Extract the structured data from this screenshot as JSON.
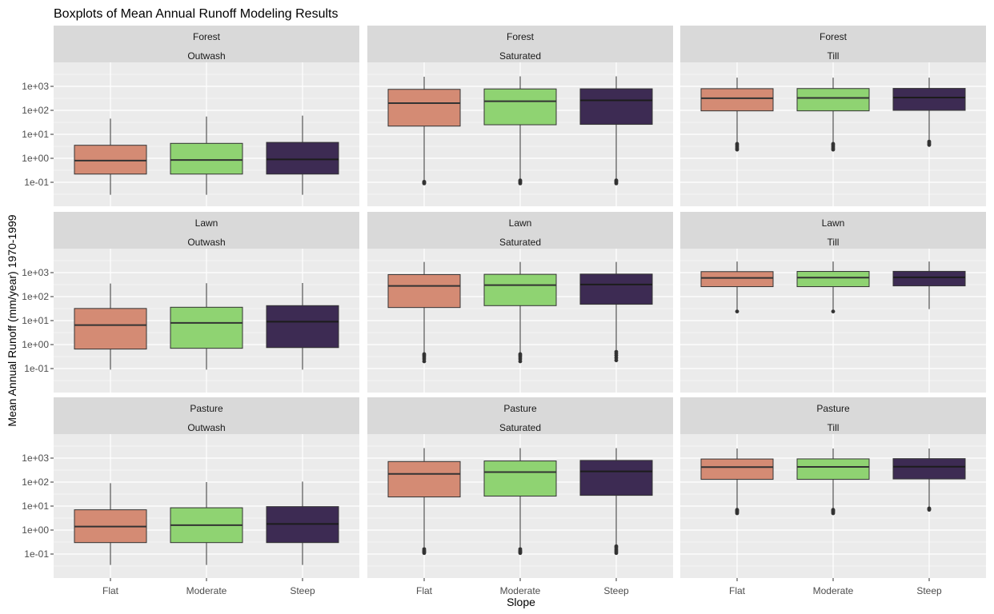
{
  "chart_data": {
    "type": "boxplot",
    "title": "Boxplots of Mean Annual Runoff Modeling Results",
    "xlabel": "Slope",
    "ylabel": "Mean Annual Runoff (mm/year) 1970-1999",
    "y_scale": "log10",
    "ylim": [
      0.01,
      10000
    ],
    "y_ticks": [
      0.1,
      1,
      10,
      100,
      1000
    ],
    "y_tick_labels": [
      "1e-01",
      "1e+00",
      "1e+01",
      "1e+02",
      "1e+03"
    ],
    "categories": [
      "Flat",
      "Moderate",
      "Steep"
    ],
    "fill_colors": {
      "Flat": "#d48b74",
      "Moderate": "#8fd372",
      "Steep": "#3d2b53"
    },
    "facet_rows": [
      "Forest",
      "Lawn",
      "Pasture"
    ],
    "facet_cols": [
      "Outwash",
      "Saturated",
      "Till"
    ],
    "grid": true,
    "legend": "none",
    "panels": [
      {
        "row": "Forest",
        "col": "Outwash",
        "boxes": [
          {
            "category": "Flat",
            "whisker_low": 0.03,
            "q1": 0.22,
            "median": 0.8,
            "q3": 3.5,
            "whisker_high": 45,
            "outliers": []
          },
          {
            "category": "Moderate",
            "whisker_low": 0.03,
            "q1": 0.22,
            "median": 0.85,
            "q3": 4.2,
            "whisker_high": 55,
            "outliers": []
          },
          {
            "category": "Steep",
            "whisker_low": 0.03,
            "q1": 0.22,
            "median": 0.9,
            "q3": 4.6,
            "whisker_high": 60,
            "outliers": []
          }
        ]
      },
      {
        "row": "Forest",
        "col": "Saturated",
        "boxes": [
          {
            "category": "Flat",
            "whisker_low": 0.11,
            "q1": 22,
            "median": 200,
            "q3": 750,
            "whisker_high": 2500,
            "outliers": [
              0.09,
              0.095,
              0.1,
              0.105
            ]
          },
          {
            "category": "Moderate",
            "whisker_low": 0.13,
            "q1": 25,
            "median": 240,
            "q3": 780,
            "whisker_high": 2600,
            "outliers": [
              0.09,
              0.1,
              0.11,
              0.12
            ]
          },
          {
            "category": "Steep",
            "whisker_low": 0.13,
            "q1": 26,
            "median": 260,
            "q3": 790,
            "whisker_high": 2600,
            "outliers": [
              0.09,
              0.1,
              0.11,
              0.12
            ]
          }
        ]
      },
      {
        "row": "Forest",
        "col": "Till",
        "boxes": [
          {
            "category": "Flat",
            "whisker_low": 4.2,
            "q1": 95,
            "median": 320,
            "q3": 800,
            "whisker_high": 2300,
            "outliers": [
              2.3,
              2.6,
              3,
              3.5,
              4
            ]
          },
          {
            "category": "Moderate",
            "whisker_low": 4.2,
            "q1": 95,
            "median": 330,
            "q3": 810,
            "whisker_high": 2300,
            "outliers": [
              2.3,
              2.6,
              3,
              3.5,
              4
            ]
          },
          {
            "category": "Steep",
            "whisker_low": 6,
            "q1": 100,
            "median": 340,
            "q3": 820,
            "whisker_high": 2300,
            "outliers": [
              3.6,
              4,
              4.5,
              5
            ]
          }
        ]
      },
      {
        "row": "Lawn",
        "col": "Outwash",
        "boxes": [
          {
            "category": "Flat",
            "whisker_low": 0.09,
            "q1": 0.65,
            "median": 6.5,
            "q3": 32,
            "whisker_high": 350,
            "outliers": []
          },
          {
            "category": "Moderate",
            "whisker_low": 0.09,
            "q1": 0.7,
            "median": 8,
            "q3": 36,
            "whisker_high": 360,
            "outliers": []
          },
          {
            "category": "Steep",
            "whisker_low": 0.09,
            "q1": 0.75,
            "median": 9,
            "q3": 42,
            "whisker_high": 370,
            "outliers": []
          }
        ]
      },
      {
        "row": "Lawn",
        "col": "Saturated",
        "boxes": [
          {
            "category": "Flat",
            "whisker_low": 0.45,
            "q1": 35,
            "median": 280,
            "q3": 830,
            "whisker_high": 2800,
            "outliers": [
              0.2,
              0.25,
              0.3,
              0.35,
              0.4
            ]
          },
          {
            "category": "Moderate",
            "whisker_low": 0.45,
            "q1": 42,
            "median": 300,
            "q3": 850,
            "whisker_high": 2800,
            "outliers": [
              0.2,
              0.25,
              0.3,
              0.35,
              0.4
            ]
          },
          {
            "category": "Steep",
            "whisker_low": 0.6,
            "q1": 48,
            "median": 320,
            "q3": 870,
            "whisker_high": 2800,
            "outliers": [
              0.22,
              0.28,
              0.35,
              0.42,
              0.5
            ]
          }
        ]
      },
      {
        "row": "Lawn",
        "col": "Till",
        "boxes": [
          {
            "category": "Flat",
            "whisker_low": 25,
            "q1": 260,
            "median": 600,
            "q3": 1100,
            "whisker_high": 2900,
            "outliers": [
              24
            ]
          },
          {
            "category": "Moderate",
            "whisker_low": 25,
            "q1": 260,
            "median": 620,
            "q3": 1120,
            "whisker_high": 2900,
            "outliers": [
              24
            ]
          },
          {
            "category": "Steep",
            "whisker_low": 30,
            "q1": 280,
            "median": 640,
            "q3": 1130,
            "whisker_high": 2900,
            "outliers": []
          }
        ]
      },
      {
        "row": "Pasture",
        "col": "Outwash",
        "boxes": [
          {
            "category": "Flat",
            "whisker_low": 0.035,
            "q1": 0.3,
            "median": 1.4,
            "q3": 7,
            "whisker_high": 90,
            "outliers": []
          },
          {
            "category": "Moderate",
            "whisker_low": 0.035,
            "q1": 0.3,
            "median": 1.6,
            "q3": 8.5,
            "whisker_high": 100,
            "outliers": []
          },
          {
            "category": "Steep",
            "whisker_low": 0.035,
            "q1": 0.3,
            "median": 1.8,
            "q3": 9.5,
            "whisker_high": 105,
            "outliers": []
          }
        ]
      },
      {
        "row": "Pasture",
        "col": "Saturated",
        "boxes": [
          {
            "category": "Flat",
            "whisker_low": 0.19,
            "q1": 24,
            "median": 220,
            "q3": 720,
            "whisker_high": 2600,
            "outliers": [
              0.11,
              0.12,
              0.13,
              0.14,
              0.16
            ]
          },
          {
            "category": "Moderate",
            "whisker_low": 0.19,
            "q1": 26,
            "median": 260,
            "q3": 760,
            "whisker_high": 2600,
            "outliers": [
              0.11,
              0.12,
              0.13,
              0.14,
              0.16
            ]
          },
          {
            "category": "Steep",
            "whisker_low": 0.25,
            "q1": 28,
            "median": 280,
            "q3": 800,
            "whisker_high": 2600,
            "outliers": [
              0.11,
              0.13,
              0.15,
              0.18,
              0.21
            ]
          }
        ]
      },
      {
        "row": "Pasture",
        "col": "Till",
        "boxes": [
          {
            "category": "Flat",
            "whisker_low": 7.5,
            "q1": 130,
            "median": 420,
            "q3": 920,
            "whisker_high": 2500,
            "outliers": [
              5,
              5.5,
              6,
              6.5,
              7
            ]
          },
          {
            "category": "Moderate",
            "whisker_low": 7.5,
            "q1": 130,
            "median": 430,
            "q3": 930,
            "whisker_high": 2500,
            "outliers": [
              5,
              5.5,
              6,
              6.5,
              7
            ]
          },
          {
            "category": "Steep",
            "whisker_low": 9,
            "q1": 135,
            "median": 440,
            "q3": 950,
            "whisker_high": 2500,
            "outliers": [
              7,
              7.5,
              8
            ]
          }
        ]
      }
    ]
  }
}
